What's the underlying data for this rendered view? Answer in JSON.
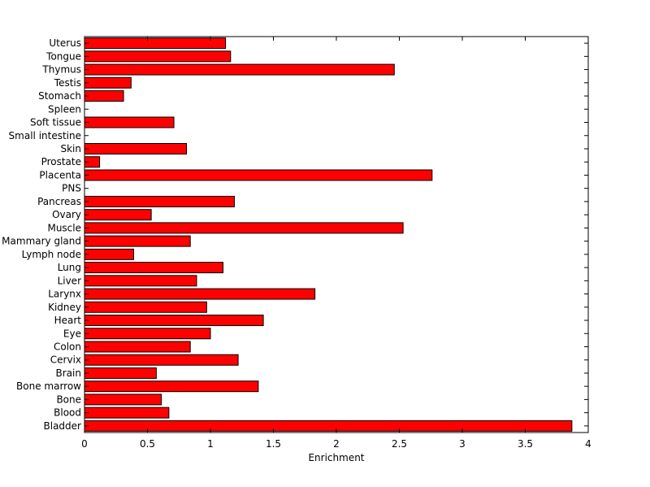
{
  "chart_data": {
    "type": "bar",
    "orientation": "horizontal",
    "title": "",
    "xlabel": "Enrichment",
    "ylabel": "",
    "xlim": [
      0,
      4
    ],
    "xticks": [
      "0",
      "0.5",
      "1",
      "1.5",
      "2",
      "2.5",
      "3",
      "3.5",
      "4"
    ],
    "bar_color": "#ff0000",
    "edge_color": "#000000",
    "grid": false,
    "categories": [
      "Bladder",
      "Blood",
      "Bone",
      "Bone marrow",
      "Brain",
      "Cervix",
      "Colon",
      "Eye",
      "Heart",
      "Kidney",
      "Larynx",
      "Liver",
      "Lung",
      "Lymph node",
      "Mammary gland",
      "Muscle",
      "Ovary",
      "Pancreas",
      "PNS",
      "Placenta",
      "Prostate",
      "Skin",
      "Small intestine",
      "Soft tissue",
      "Spleen",
      "Stomach",
      "Testis",
      "Thymus",
      "Tongue",
      "Uterus"
    ],
    "values": [
      3.87,
      0.67,
      0.61,
      1.38,
      0.57,
      1.22,
      0.84,
      1.0,
      1.42,
      0.97,
      1.83,
      0.89,
      1.1,
      0.39,
      0.84,
      2.53,
      0.53,
      1.19,
      0,
      2.76,
      0.12,
      0.81,
      0,
      0.71,
      0,
      0.31,
      0.37,
      2.46,
      1.16,
      1.12
    ]
  }
}
